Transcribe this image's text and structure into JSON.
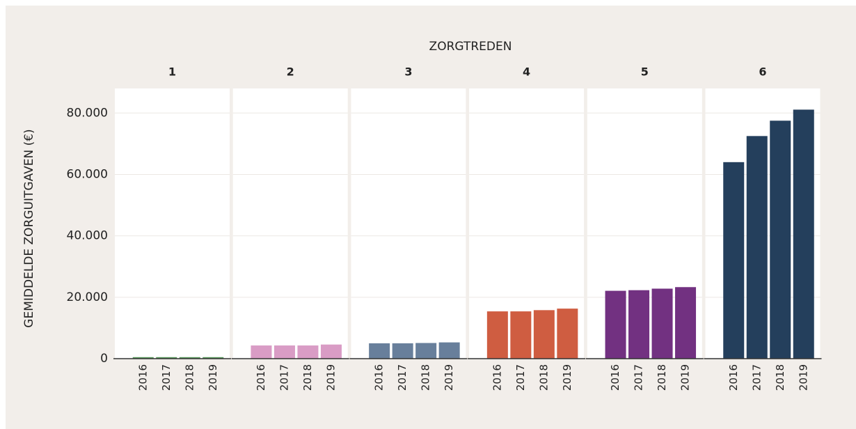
{
  "title": "ZORGTREDEN",
  "y_label": "GEMIDDELDE ZORGUITGAVEN (€)",
  "chart_data": [
    {
      "type": "bar",
      "title": "1",
      "categories": [
        "2016",
        "2017",
        "2018",
        "2019"
      ],
      "values": [
        500,
        500,
        500,
        500
      ],
      "color": "#5b9a5e",
      "ylim": [
        0,
        88000
      ],
      "yticks": [
        0,
        {
          "value": 20000,
          "label": "20.000"
        },
        {
          "value": 40000,
          "label": "40.000"
        },
        {
          "value": 60000,
          "label": "60.000"
        },
        {
          "value": 80000,
          "label": "80.000"
        }
      ],
      "grid": true
    },
    {
      "type": "bar",
      "title": "2",
      "categories": [
        "2016",
        "2017",
        "2018",
        "2019"
      ],
      "values": [
        4300,
        4300,
        4300,
        4600
      ],
      "color": "#d99cc5",
      "ylim": [
        0,
        88000
      ]
    },
    {
      "type": "bar",
      "title": "3",
      "categories": [
        "2016",
        "2017",
        "2018",
        "2019"
      ],
      "values": [
        5000,
        5000,
        5100,
        5300
      ],
      "color": "#687f9b",
      "ylim": [
        0,
        88000
      ]
    },
    {
      "type": "bar",
      "title": "4",
      "categories": [
        "2016",
        "2017",
        "2018",
        "2019"
      ],
      "values": [
        15400,
        15400,
        15800,
        16300
      ],
      "color": "#cf5d41",
      "ylim": [
        0,
        88000
      ]
    },
    {
      "type": "bar",
      "title": "5",
      "categories": [
        "2016",
        "2017",
        "2018",
        "2019"
      ],
      "values": [
        22100,
        22300,
        22800,
        23300
      ],
      "color": "#723181",
      "ylim": [
        0,
        88000
      ]
    },
    {
      "type": "bar",
      "title": "6",
      "categories": [
        "2016",
        "2017",
        "2018",
        "2019"
      ],
      "values": [
        64000,
        72500,
        77500,
        81100
      ],
      "color": "#243f5c",
      "ylim": [
        0,
        88000
      ]
    }
  ]
}
